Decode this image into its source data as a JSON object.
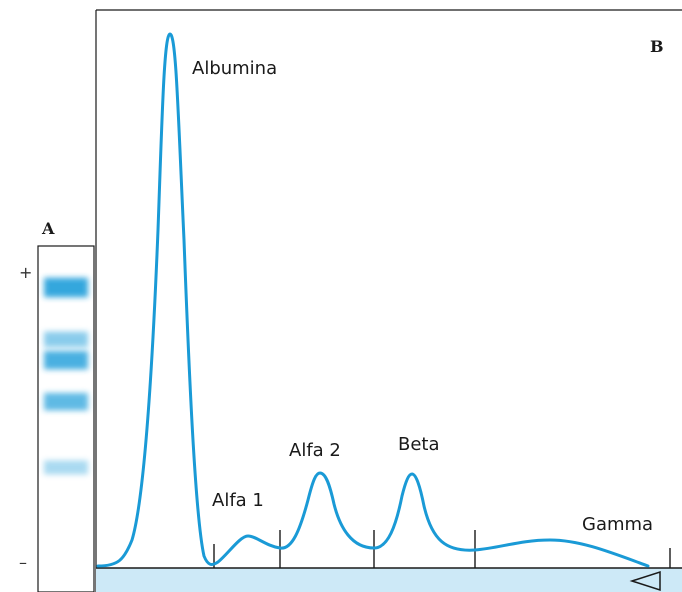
{
  "panel_a": {
    "letter": "A",
    "plus_sign": "+",
    "minus_sign": "–",
    "bands": [
      {
        "fraction": 0.12,
        "intensity": 0.95
      },
      {
        "fraction": 0.27,
        "intensity": 0.55
      },
      {
        "fraction": 0.33,
        "intensity": 0.85
      },
      {
        "fraction": 0.45,
        "intensity": 0.75
      },
      {
        "fraction": 0.64,
        "intensity": 0.4
      }
    ]
  },
  "panel_b": {
    "letter": "B",
    "peaks": [
      {
        "id": "albumina",
        "label": "Albumina"
      },
      {
        "id": "alfa1",
        "label": "Alfa 1"
      },
      {
        "id": "alfa2",
        "label": "Alfa 2"
      },
      {
        "id": "beta",
        "label": "Beta"
      },
      {
        "id": "gamma",
        "label": "Gamma"
      }
    ]
  },
  "colors": {
    "curve": "#1a9ad6",
    "band": "#2aa3dc",
    "baseline_fill": "#cde9f7",
    "frame": "#1a1a1a"
  }
}
